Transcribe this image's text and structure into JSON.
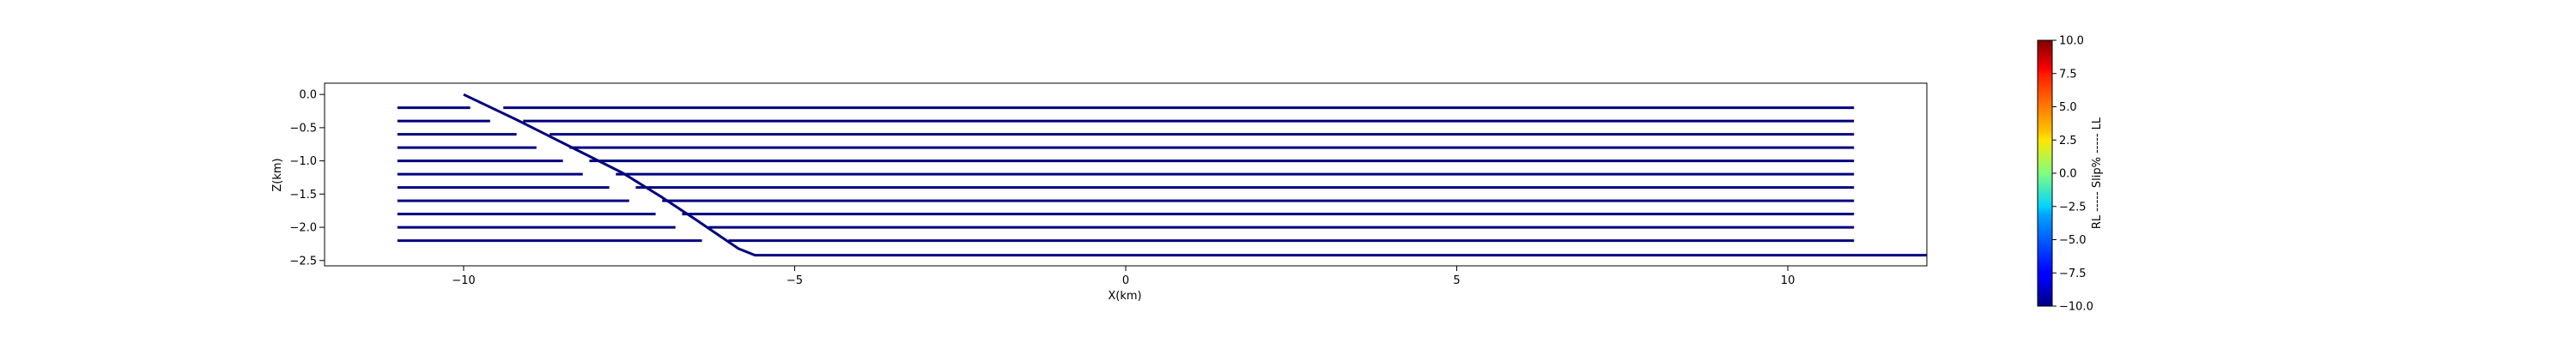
{
  "chart_data": [
    {
      "type": "line",
      "title": "",
      "xlabel": "X(km)",
      "ylabel": "Z(km)",
      "xlim": [
        -12.1,
        12.1
      ],
      "ylim": [
        -2.58,
        0.17
      ],
      "xticks": [
        -10,
        -5,
        0,
        5,
        10
      ],
      "xtick_labels": [
        "−10",
        "−5",
        "0",
        "5",
        "10"
      ],
      "yticks": [
        0.0,
        -0.5,
        -1.0,
        -1.5,
        -2.0,
        -2.5
      ],
      "ytick_labels": [
        "0.0",
        "−0.5",
        "−1.0",
        "−1.5",
        "−2.0",
        "−2.5"
      ],
      "grid": false,
      "line_color": "#00007f",
      "main_fault": {
        "x": [
          -10.0,
          -9.2,
          -8.4,
          -7.6,
          -7.0,
          -6.5,
          -6.1,
          -5.85,
          -5.6,
          12.1
        ],
        "z": [
          0.0,
          -0.38,
          -0.78,
          -1.18,
          -1.55,
          -1.88,
          -2.15,
          -2.32,
          -2.42,
          -2.42
        ]
      },
      "fault_segments": [
        {
          "z": -0.2,
          "left": [
            -11.0,
            -9.9
          ],
          "right": [
            -9.4,
            11.0
          ]
        },
        {
          "z": -0.4,
          "left": [
            -11.0,
            -9.6
          ],
          "right": [
            -9.1,
            11.0
          ]
        },
        {
          "z": -0.6,
          "left": [
            -11.0,
            -9.2
          ],
          "right": [
            -8.7,
            11.0
          ]
        },
        {
          "z": -0.8,
          "left": [
            -11.0,
            -8.9
          ],
          "right": [
            -8.4,
            11.0
          ]
        },
        {
          "z": -1.0,
          "left": [
            -11.0,
            -8.5
          ],
          "right": [
            -8.1,
            11.0
          ]
        },
        {
          "z": -1.2,
          "left": [
            -11.0,
            -8.2
          ],
          "right": [
            -7.7,
            11.0
          ]
        },
        {
          "z": -1.4,
          "left": [
            -11.0,
            -7.8
          ],
          "right": [
            -7.4,
            11.0
          ]
        },
        {
          "z": -1.6,
          "left": [
            -11.0,
            -7.5
          ],
          "right": [
            -7.0,
            11.0
          ]
        },
        {
          "z": -1.8,
          "left": [
            -11.0,
            -7.1
          ],
          "right": [
            -6.7,
            11.0
          ]
        },
        {
          "z": -2.0,
          "left": [
            -11.0,
            -6.8
          ],
          "right": [
            -6.3,
            11.0
          ]
        },
        {
          "z": -2.2,
          "left": [
            -11.0,
            -6.4
          ],
          "right": [
            -6.0,
            11.0
          ]
        }
      ]
    },
    {
      "type": "heatmap",
      "colormap": "jet",
      "range": [
        -10.0,
        10.0
      ],
      "ticks": [
        10.0,
        7.5,
        5.0,
        2.5,
        0.0,
        -2.5,
        -5.0,
        -7.5,
        -10.0
      ],
      "tick_labels": [
        "10.0",
        "7.5",
        "5.0",
        "2.5",
        "0.0",
        "−2.5",
        "−5.0",
        "−7.5",
        "−10.0"
      ],
      "label": "RL ----- Slip% ----- LL"
    }
  ]
}
